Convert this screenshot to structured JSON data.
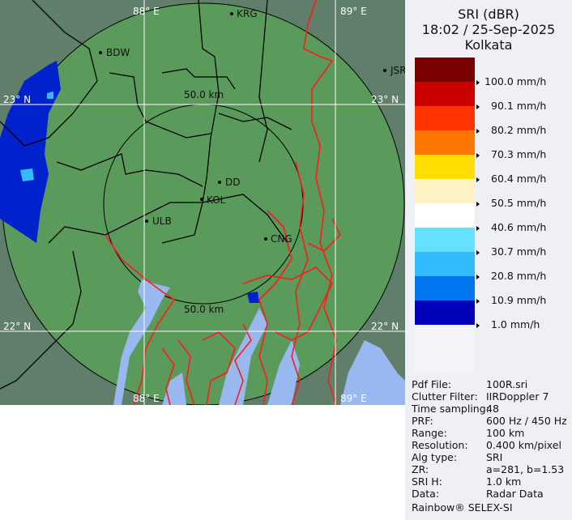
{
  "header": {
    "product": "SRI (dBR)",
    "datetime": "18:02 / 25-Sep-2025",
    "site": "Kolkata"
  },
  "legend": {
    "colors": [
      "#7a0000",
      "#cc0000",
      "#ff3300",
      "#ff7700",
      "#ffdd00",
      "#fff2c4",
      "#ffffff",
      "#66e0ff",
      "#33bbff",
      "#0077ee",
      "#0000b8"
    ],
    "labels": [
      "100.0 mm/h",
      "90.1 mm/h",
      "80.2 mm/h",
      "70.3 mm/h",
      "60.4 mm/h",
      "50.5 mm/h",
      "40.6 mm/h",
      "30.7 mm/h",
      "20.8 mm/h",
      "10.9 mm/h",
      "1.0 mm/h"
    ]
  },
  "map": {
    "grid_labels": {
      "lon1": "88° E",
      "lon2": "89° E",
      "lat1": "23° N",
      "lat2": "22° N"
    },
    "range_labels": {
      "inner_top": "50.0 km",
      "inner_bottom": "50.0 km"
    },
    "places": [
      {
        "name": "KRG"
      },
      {
        "name": "BDW"
      },
      {
        "name": "JSR"
      },
      {
        "name": "DD"
      },
      {
        "name": "KOL"
      },
      {
        "name": "ULB"
      },
      {
        "name": "CNG"
      }
    ],
    "colors": {
      "land": "#5a9a5a",
      "outside": "#5f7f6a",
      "water": "#9ab8f0",
      "rivers": "#ff1a1a",
      "borders": "#000000",
      "rain": "#0022cc"
    }
  },
  "info": [
    {
      "key": "Pdf File:",
      "value": "100R.sri"
    },
    {
      "key": "Clutter Filter:",
      "value": "IIRDoppler 7"
    },
    {
      "key": "Time sampling:",
      "value": "48"
    },
    {
      "key": "PRF:",
      "value": "600 Hz / 450 Hz"
    },
    {
      "key": "Range:",
      "value": "100 km"
    },
    {
      "key": "Resolution:",
      "value": "0.400 km/pixel"
    },
    {
      "key": "Alg type:",
      "value": "SRI"
    },
    {
      "key": "ZR:",
      "value": "a=281, b=1.53"
    },
    {
      "key": "SRI H:",
      "value": "1.0 km"
    },
    {
      "key": "Data:",
      "value": "Radar Data"
    }
  ],
  "footer": "Rainbow® SELEX-SI"
}
